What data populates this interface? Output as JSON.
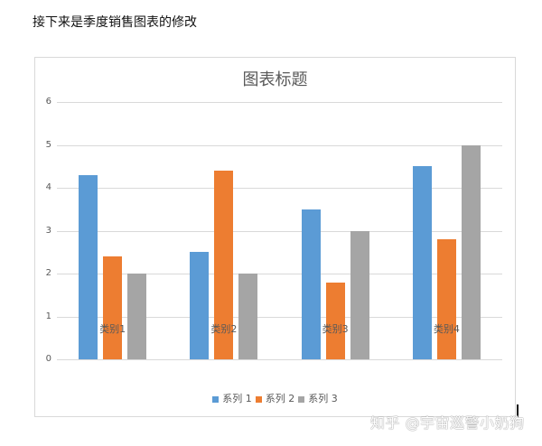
{
  "page": {
    "heading": "接下来是季度销售图表的修改",
    "watermark": "知乎 @宇宙巡警小奶狗"
  },
  "chart_data": {
    "type": "bar",
    "title": "图表标题",
    "categories": [
      "类别1",
      "类别2",
      "类别3",
      "类别4"
    ],
    "series": [
      {
        "name": "系列 1",
        "color": "#5b9bd5",
        "values": [
          4.3,
          2.5,
          3.5,
          4.5
        ]
      },
      {
        "name": "系列 2",
        "color": "#ed7d31",
        "values": [
          2.4,
          4.4,
          1.8,
          2.8
        ]
      },
      {
        "name": "系列 3",
        "color": "#a5a5a5",
        "values": [
          2,
          2,
          3,
          5
        ]
      }
    ],
    "xlabel": "",
    "ylabel": "",
    "ylim": [
      0,
      6
    ],
    "yticks": [
      "0",
      "1",
      "2",
      "3",
      "4",
      "5",
      "6"
    ],
    "grid": true,
    "legend_position": "bottom"
  }
}
